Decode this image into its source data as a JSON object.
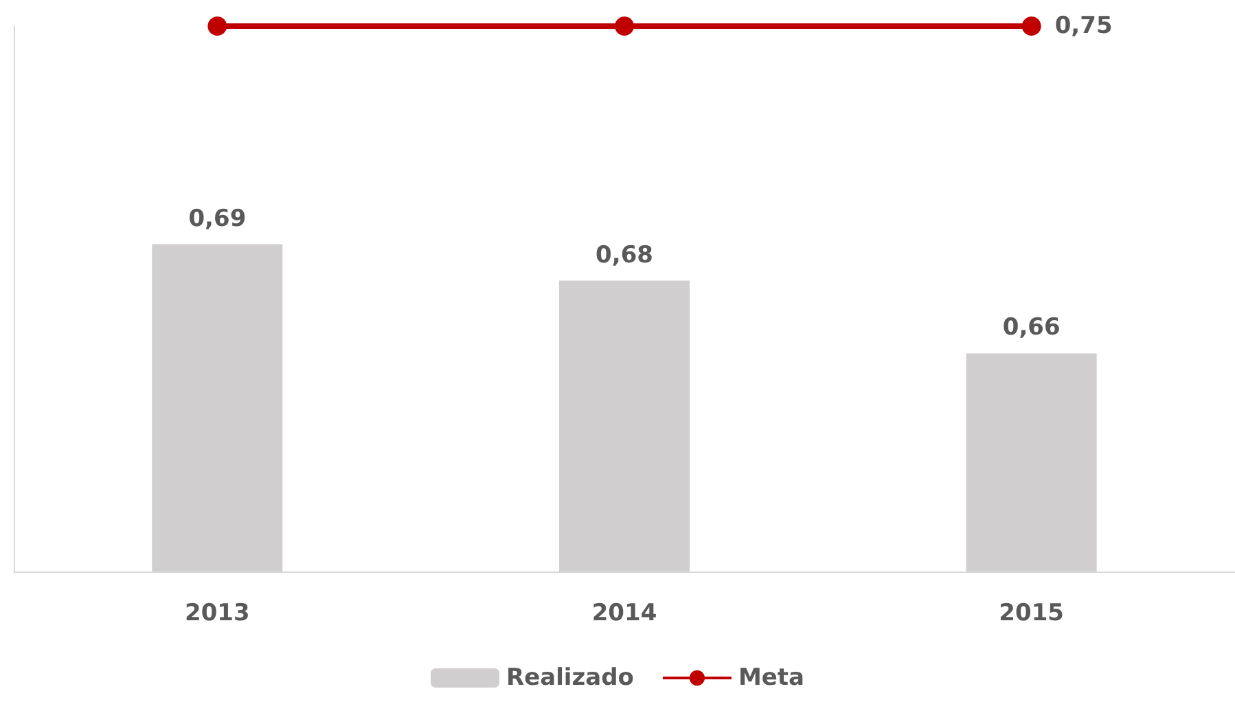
{
  "chart_data": {
    "type": "bar",
    "categories": [
      "2013",
      "2014",
      "2015"
    ],
    "series": [
      {
        "name": "Realizado",
        "color": "#d0cece",
        "values": [
          0.69,
          0.68,
          0.66
        ],
        "value_labels": [
          "0,69",
          "0,68",
          "0,66"
        ]
      },
      {
        "name": "Meta",
        "type": "line",
        "color": "#c00000",
        "values": [
          0.75,
          0.75,
          0.75
        ],
        "value_labels": [
          null,
          null,
          "0,75"
        ],
        "marker": "circle"
      }
    ],
    "ylim": [
      0.6,
      0.75
    ],
    "tick_labels": "x",
    "grid": false,
    "legend": "bottom"
  }
}
